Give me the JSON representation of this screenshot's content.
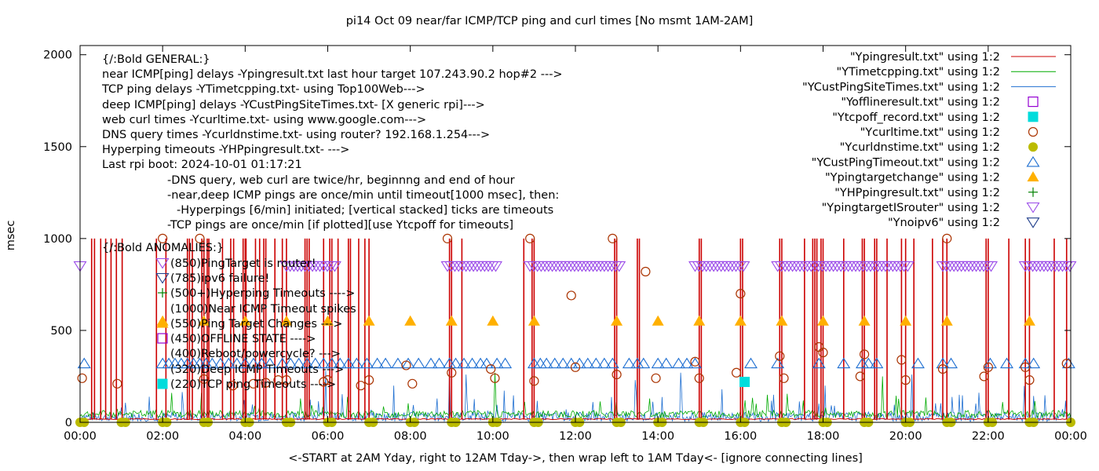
{
  "chart_data": {
    "type": "line",
    "title": "pi14 Oct 09  near/far ICMP/TCP ping and curl times [No msmt 1AM-2AM]",
    "xlabel": "<-START at 2AM Yday, right to 12AM Tday->, then wrap left to 1AM Tday<- [ignore connecting lines]",
    "ylabel": "msec",
    "xlim": [
      0,
      24
    ],
    "ylim": [
      0,
      2050
    ],
    "grid": false,
    "legend_position": "top-right",
    "x_ticks": [
      {
        "v": 0,
        "label": "00:00"
      },
      {
        "v": 2,
        "label": "02:00"
      },
      {
        "v": 4,
        "label": "04:00"
      },
      {
        "v": 6,
        "label": "06:00"
      },
      {
        "v": 8,
        "label": "08:00"
      },
      {
        "v": 10,
        "label": "10:00"
      },
      {
        "v": 12,
        "label": "12:00"
      },
      {
        "v": 14,
        "label": "14:00"
      },
      {
        "v": 16,
        "label": "16:00"
      },
      {
        "v": 18,
        "label": "18:00"
      },
      {
        "v": 20,
        "label": "20:00"
      },
      {
        "v": 22,
        "label": "22:00"
      },
      {
        "v": 24,
        "label": "00:00"
      }
    ],
    "y_ticks": [
      {
        "v": 0,
        "label": "0"
      },
      {
        "v": 500,
        "label": "500"
      },
      {
        "v": 1000,
        "label": "1000"
      },
      {
        "v": 1500,
        "label": "1500"
      },
      {
        "v": 2000,
        "label": "2000"
      }
    ],
    "annotations": [
      "{/:Bold GENERAL:}",
      "near ICMP[ping] delays -Ypingresult.txt last hour target 107.243.90.2 hop#2 --->",
      "TCP ping delays -YTimetcpping.txt- using Top100Web--->",
      "deep ICMP[ping] delays -YCustPingSiteTimes.txt- [X generic rpi]--->",
      "web curl times -Ycurltime.txt- using www.google.com--->",
      "DNS query times -Ycurldnstime.txt- using router? 192.168.1.254--->",
      "Hyperping timeouts -YHPpingresult.txt- --->",
      "Last rpi boot: 2024-10-01 01:17:21",
      "-DNS query, web curl are twice/hr, beginnng and end of hour",
      "-near,deep ICMP pings are once/min until timeout[1000 msec], then:",
      "-Hyperpings [6/min] initiated; [vertical stacked] ticks are timeouts",
      "-TCP pings are once/min [if plotted][use Ytcpoff for timeouts]",
      "{/:Bold ANOMALIES:}",
      "(850)PingTarget is router!",
      "(785)ipv6 failure!",
      "(500+)Hyperping Timeouts ---->",
      "(1000)Near ICMP Timeout spikes",
      "(550)Ping Target Changes --->",
      "(450)OFFLINE STATE ---->",
      "(400)Reboot/powercycle? --->",
      "(320)Deep ICMP Timeouts --->",
      "(220)TCP ping Timeouts ---->"
    ],
    "series": [
      {
        "name": "\"Ypingresult.txt\" using 1:2",
        "style": "line",
        "color": "#cc0000",
        "timeout_spikes_x": [
          0.28,
          0.35,
          0.5,
          0.62,
          0.75,
          0.88,
          1.02,
          1.85,
          2.08,
          2.6,
          2.65,
          2.72,
          2.95,
          3.0,
          3.08,
          3.12,
          3.45,
          3.65,
          3.72,
          3.95,
          4.0,
          4.02,
          4.25,
          4.35,
          4.45,
          4.5,
          4.72,
          4.9,
          5.0,
          5.45,
          5.5,
          5.55,
          5.9,
          6.05,
          6.1,
          6.25,
          6.5,
          6.55,
          6.75,
          6.9,
          7.0,
          8.95,
          9.0,
          9.25,
          10.75,
          10.95,
          11.0,
          12.95,
          13.0,
          13.5,
          13.55,
          15.0,
          15.05,
          16.0,
          16.05,
          16.95,
          17.0,
          17.55,
          17.75,
          17.8,
          17.85,
          17.95,
          18.0,
          18.5,
          18.95,
          19.0,
          19.25,
          19.3,
          19.55,
          19.9,
          20.0,
          20.2,
          20.65,
          20.9,
          21.0,
          21.95,
          22.0,
          22.5,
          22.9,
          23.0,
          23.6,
          23.9
        ],
        "baseline_ms": 15
      },
      {
        "name": "\"YTimetcpping.txt\" using 1:2",
        "style": "line",
        "color": "#00aa00",
        "baseline_ms": 45,
        "outliers": [
          [
            2.95,
            160
          ],
          [
            10.05,
            270
          ],
          [
            16.1,
            120
          ],
          [
            19.45,
            250
          ],
          [
            22.35,
            110
          ]
        ]
      },
      {
        "name": "\"YCustPingSiteTimes.txt\" using 1:2",
        "style": "line",
        "color": "#1f6fd1",
        "baseline_ms": 30,
        "outliers": [
          [
            5.95,
            280
          ],
          [
            7.6,
            200
          ],
          [
            8.95,
            300
          ],
          [
            9.35,
            260
          ],
          [
            13.45,
            230
          ],
          [
            14.55,
            270
          ],
          [
            15.55,
            180
          ],
          [
            16.8,
            150
          ],
          [
            18.05,
            200
          ],
          [
            20.15,
            260
          ],
          [
            21.3,
            150
          ]
        ]
      },
      {
        "name": "\"Yofflineresult.txt\" using 1:2",
        "style": "point",
        "marker": "open-square",
        "color": "#9400d3",
        "points": []
      },
      {
        "name": "\"Ytcpoff_record.txt\" using 1:2",
        "style": "point",
        "marker": "filled-square",
        "color": "#00dcdc",
        "points": [
          [
            16.1,
            220
          ]
        ]
      },
      {
        "name": "\"Ycurltime.txt\" using 1:2",
        "style": "point",
        "marker": "open-circle",
        "color": "#aa3300",
        "points": [
          [
            0.05,
            240
          ],
          [
            0.9,
            210
          ],
          [
            2.0,
            1000
          ],
          [
            2.9,
            1000
          ],
          [
            3.0,
            235
          ],
          [
            3.7,
            200
          ],
          [
            4.2,
            210
          ],
          [
            4.5,
            215
          ],
          [
            4.8,
            230
          ],
          [
            5.0,
            230
          ],
          [
            5.9,
            220
          ],
          [
            6.0,
            230
          ],
          [
            6.8,
            200
          ],
          [
            7.0,
            230
          ],
          [
            7.9,
            310
          ],
          [
            8.05,
            210
          ],
          [
            8.9,
            1000
          ],
          [
            9.0,
            270
          ],
          [
            9.95,
            290
          ],
          [
            10.05,
            240
          ],
          [
            10.9,
            1000
          ],
          [
            11.0,
            225
          ],
          [
            11.9,
            690
          ],
          [
            12.0,
            300
          ],
          [
            12.9,
            1000
          ],
          [
            13.0,
            260
          ],
          [
            13.7,
            820
          ],
          [
            13.95,
            240
          ],
          [
            14.9,
            330
          ],
          [
            15.0,
            240
          ],
          [
            15.9,
            270
          ],
          [
            16.0,
            700
          ],
          [
            16.95,
            360
          ],
          [
            17.05,
            240
          ],
          [
            17.9,
            410
          ],
          [
            18.0,
            380
          ],
          [
            18.9,
            250
          ],
          [
            19.0,
            370
          ],
          [
            19.9,
            340
          ],
          [
            20.0,
            230
          ],
          [
            20.9,
            290
          ],
          [
            21.0,
            1000
          ],
          [
            21.9,
            250
          ],
          [
            22.0,
            300
          ],
          [
            22.9,
            300
          ],
          [
            23.0,
            230
          ],
          [
            23.9,
            320
          ]
        ]
      },
      {
        "name": "\"Ycurldnstime.txt\" using 1:2",
        "style": "point",
        "marker": "filled-circle",
        "color": "#bbbb00",
        "points": "twice/hr at 0 ms"
      },
      {
        "name": "\"YCustPingTimeout.txt\" using 1:2",
        "style": "point",
        "marker": "open-triangle",
        "color": "#1f6fd1",
        "y_value": 320
      },
      {
        "name": "\"Ypingtargetchange\" using 1:2",
        "style": "point",
        "marker": "filled-triangle",
        "color": "#ffb000",
        "y_value": 550,
        "x": [
          2.0,
          3.0,
          4.0,
          5.0,
          6.0,
          7.0,
          8.0,
          9.0,
          10.0,
          11.0,
          13.0,
          14.0,
          15.0,
          16.0,
          17.0,
          18.0,
          19.0,
          20.0,
          21.0,
          23.0
        ]
      },
      {
        "name": "\"YHPpingresult.txt\" using 1:2",
        "style": "point",
        "marker": "plus",
        "color": "#008000",
        "points": []
      },
      {
        "name": "\"YpingtargetISrouter\" using 1:2",
        "style": "point",
        "marker": "open-triangle-down",
        "color": "#9a4ae8",
        "y_value": 850,
        "runs": [
          [
            5.0,
            6.2
          ],
          [
            8.9,
            10.1
          ],
          [
            10.9,
            13.1
          ],
          [
            14.9,
            16.1
          ],
          [
            16.9,
            20.1
          ],
          [
            20.9,
            22.1
          ],
          [
            22.9,
            24.0
          ]
        ],
        "single_x": [
          0.0
        ]
      },
      {
        "name": "\"Ynoipv6\" using 1:2",
        "style": "point",
        "marker": "open-triangle-down",
        "color": "#1f3d8b",
        "points": []
      }
    ]
  }
}
